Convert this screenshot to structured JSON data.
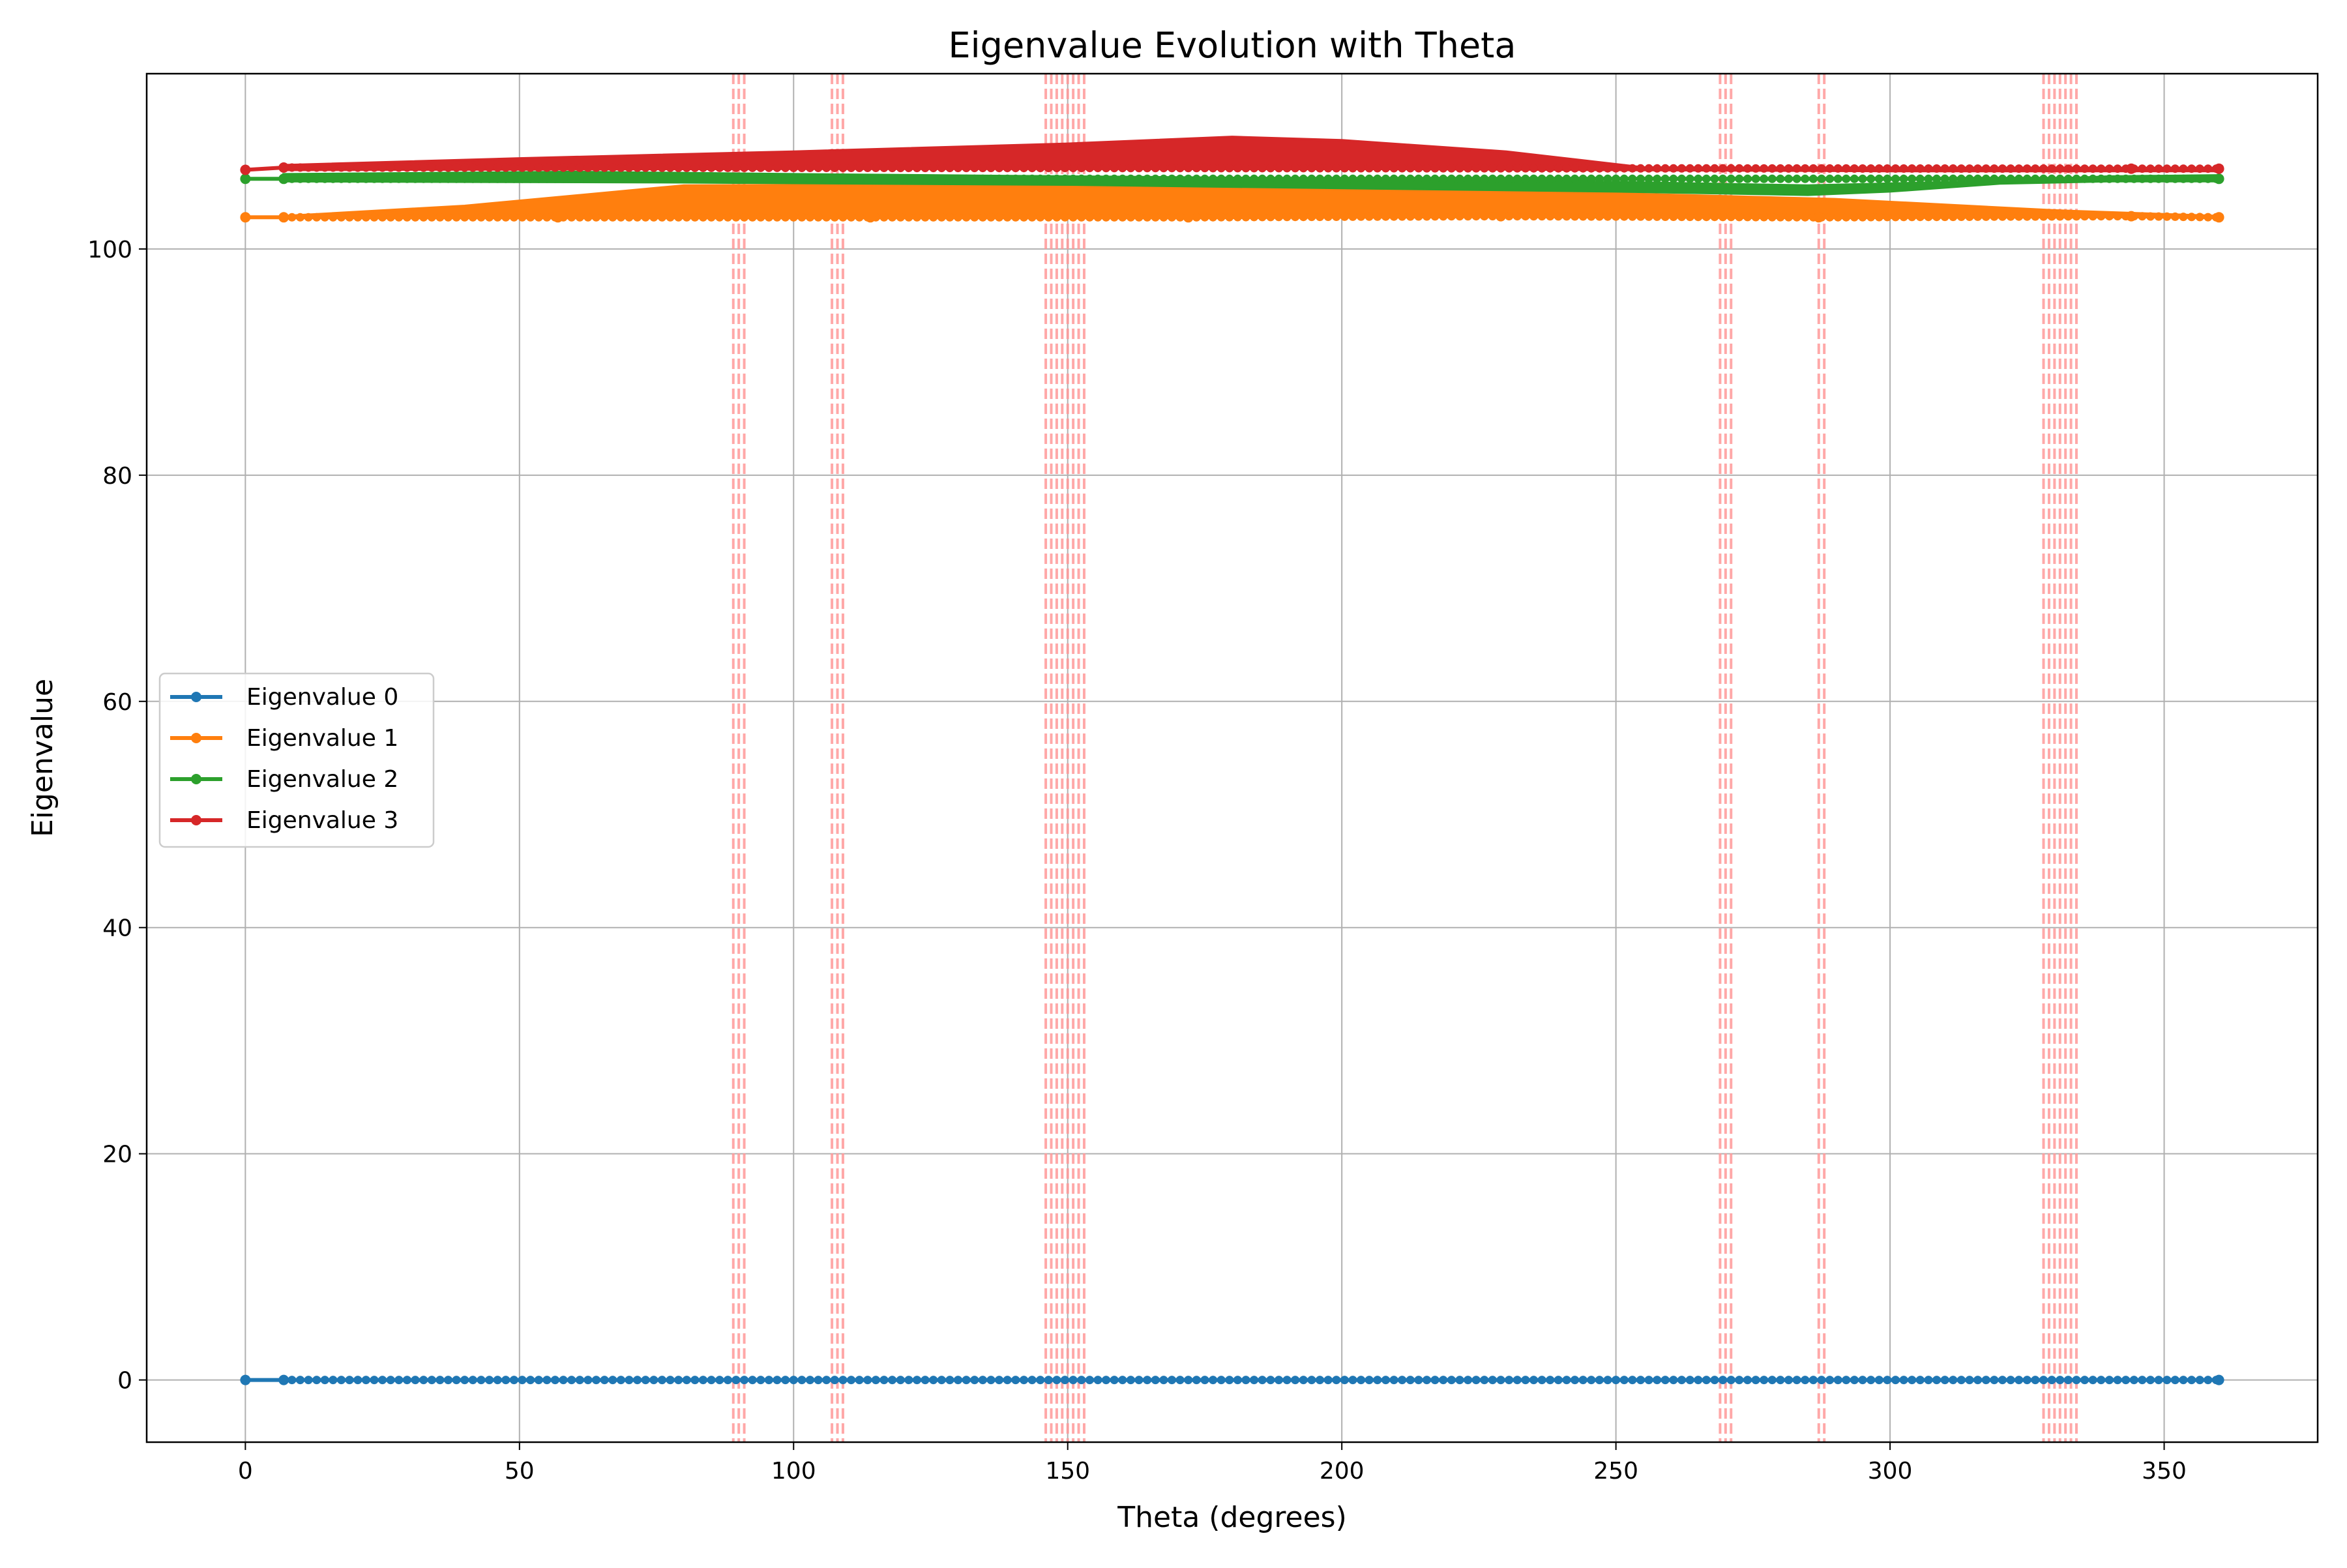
{
  "chart_data": {
    "type": "line",
    "title": "Eigenvalue Evolution with Theta",
    "xlabel": "Theta (degrees)",
    "ylabel": "Eigenvalue",
    "xlim": [
      -18,
      378
    ],
    "ylim": [
      -5.5,
      115.5
    ],
    "xticks": [
      0,
      50,
      100,
      150,
      200,
      250,
      300,
      350
    ],
    "yticks": [
      0,
      20,
      40,
      60,
      80,
      100
    ],
    "grid": true,
    "legend_position": "center-left",
    "crossing_markers": {
      "color": "#ff9999",
      "style": "dashed",
      "theta": [
        89,
        90,
        91,
        107,
        108,
        109,
        146,
        147,
        148,
        149,
        150,
        151,
        152,
        153,
        269,
        270,
        271,
        287,
        288,
        328,
        329,
        330,
        331,
        332,
        333,
        334
      ]
    },
    "series": [
      {
        "name": "Eigenvalue 0",
        "color": "#1f77b4",
        "points": [
          [
            0,
            0
          ],
          [
            7,
            0
          ],
          [
            360,
            0
          ]
        ],
        "band": null
      },
      {
        "name": "Eigenvalue 1",
        "color": "#ff7f0e",
        "points": [
          [
            0,
            102.8
          ],
          [
            7,
            102.8
          ],
          [
            57,
            102.8
          ],
          [
            114,
            102.8
          ],
          [
            172,
            102.8
          ],
          [
            229,
            102.9
          ],
          [
            287,
            102.8
          ],
          [
            344,
            102.9
          ],
          [
            360,
            102.8
          ]
        ],
        "band": {
          "upper": [
            [
              7,
              102.9
            ],
            [
              40,
              103.8
            ],
            [
              80,
              105.6
            ],
            [
              150,
              105.7
            ],
            [
              200,
              105.3
            ],
            [
              250,
              104.9
            ],
            [
              290,
              104.4
            ],
            [
              330,
              103.4
            ],
            [
              360,
              102.9
            ]
          ],
          "lower": [
            [
              7,
              102.8
            ],
            [
              100,
              102.9
            ],
            [
              200,
              103.0
            ],
            [
              250,
              103.0
            ],
            [
              300,
              102.9
            ],
            [
              360,
              102.8
            ]
          ]
        }
      },
      {
        "name": "Eigenvalue 2",
        "color": "#2ca02c",
        "points": [
          [
            0,
            106.2
          ],
          [
            7,
            106.2
          ],
          [
            360,
            106.2
          ]
        ],
        "band": {
          "upper": [
            [
              7,
              106.6
            ],
            [
              60,
              106.8
            ],
            [
              100,
              106.6
            ],
            [
              150,
              106.4
            ],
            [
              200,
              106.2
            ],
            [
              250,
              105.9
            ],
            [
              285,
              105.6
            ],
            [
              320,
              106.0
            ],
            [
              340,
              106.4
            ],
            [
              360,
              106.5
            ]
          ],
          "lower": [
            [
              7,
              106.0
            ],
            [
              80,
              105.9
            ],
            [
              150,
              105.7
            ],
            [
              200,
              105.4
            ],
            [
              250,
              105.1
            ],
            [
              285,
              104.8
            ],
            [
              300,
              105.1
            ],
            [
              320,
              105.8
            ],
            [
              340,
              106.0
            ],
            [
              360,
              106.0
            ]
          ]
        }
      },
      {
        "name": "Eigenvalue 3",
        "color": "#d62728",
        "points": [
          [
            0,
            107.0
          ],
          [
            7,
            107.2
          ],
          [
            344,
            107.1
          ],
          [
            360,
            107.1
          ]
        ],
        "band": {
          "upper": [
            [
              7,
              107.4
            ],
            [
              50,
              108.0
            ],
            [
              100,
              108.6
            ],
            [
              150,
              109.3
            ],
            [
              180,
              109.9
            ],
            [
              200,
              109.6
            ],
            [
              230,
              108.6
            ],
            [
              255,
              107.2
            ],
            [
              300,
              107.1
            ],
            [
              330,
              106.9
            ],
            [
              360,
              107.0
            ]
          ],
          "lower": [
            [
              7,
              107.0
            ],
            [
              100,
              107.1
            ],
            [
              150,
              107.1
            ],
            [
              200,
              107.1
            ],
            [
              250,
              107.0
            ],
            [
              300,
              106.9
            ],
            [
              360,
              106.9
            ]
          ]
        }
      }
    ]
  }
}
